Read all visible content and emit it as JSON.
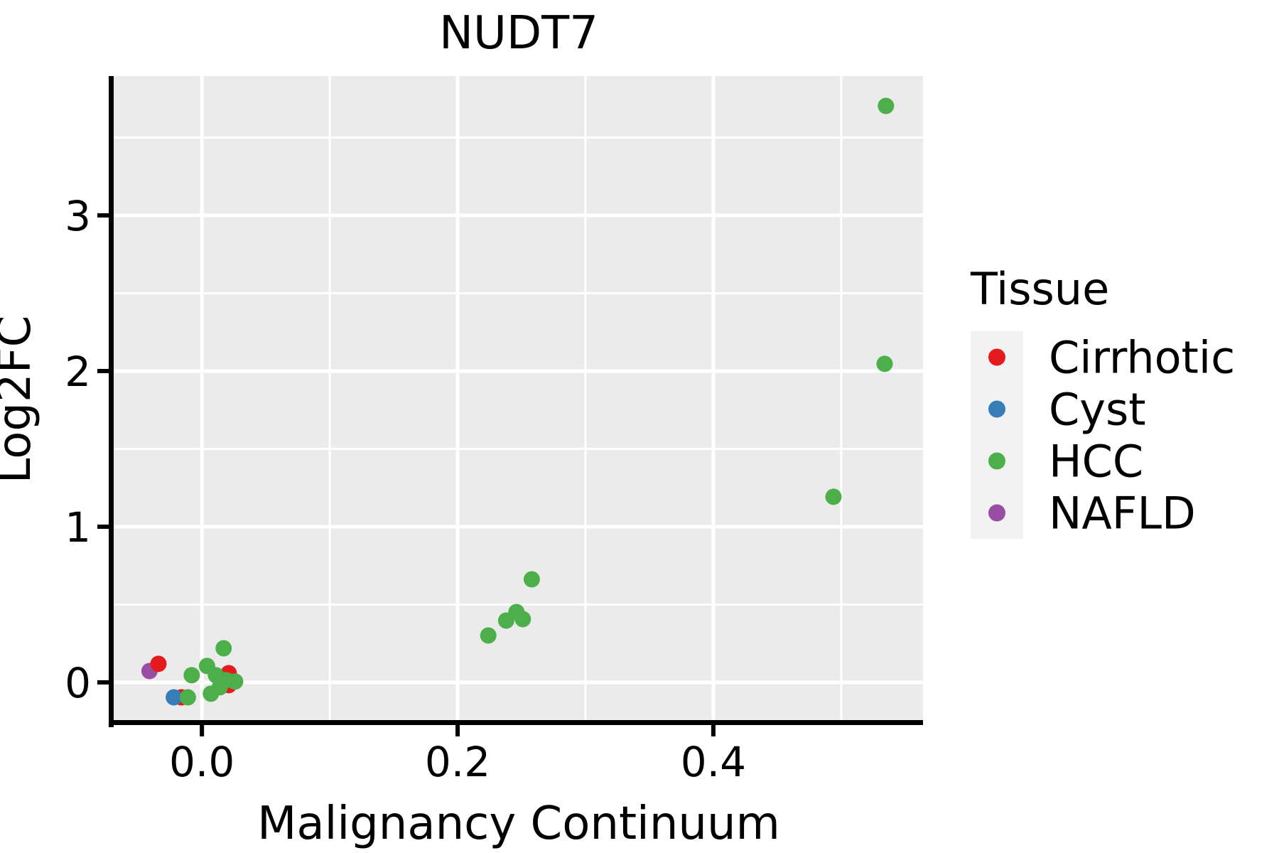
{
  "chart_data": {
    "type": "scatter",
    "title": "NUDT7",
    "xlabel": "Malignancy Continuum",
    "ylabel": "Log2FC",
    "legend": {
      "title": "Tissue",
      "position": "right",
      "entries": [
        "Cirrhotic",
        "Cyst",
        "HCC",
        "NAFLD"
      ]
    },
    "colors": {
      "Cirrhotic": "#e41a1c",
      "Cyst": "#377eb8",
      "HCC": "#4daf4a",
      "NAFLD": "#984ea3",
      "panel_background": "#ebebeb",
      "legend_key_background": "#f2f2f2",
      "gridline": "#ffffff",
      "axis_line": "#000000"
    },
    "xlim": [
      -0.069,
      0.564
    ],
    "ylim": [
      -0.256,
      3.895
    ],
    "xticks": {
      "values": [
        0.0,
        0.2,
        0.4
      ],
      "labels": [
        "0.0",
        "0.2",
        "0.4"
      ]
    },
    "yticks": {
      "values": [
        0,
        1,
        2,
        3
      ],
      "labels": [
        "0",
        "1",
        "2",
        "3"
      ]
    },
    "minor_xticks": [
      0.1,
      0.3,
      0.5
    ],
    "minor_yticks": [
      0.5,
      1.5,
      2.5,
      3.5
    ],
    "grid": "on",
    "point_radius_px": 11.5,
    "draw_order": [
      "NAFLD",
      "Cirrhotic",
      "Cyst",
      "HCC"
    ],
    "series": [
      {
        "name": "Cirrhotic",
        "points": [
          [
            -0.034,
            0.119
          ],
          [
            0.021,
            0.059
          ],
          [
            0.021,
            -0.018
          ],
          [
            -0.016,
            -0.096
          ]
        ]
      },
      {
        "name": "Cyst",
        "points": [
          [
            -0.022,
            -0.096
          ]
        ]
      },
      {
        "name": "HCC",
        "points": [
          [
            -0.008,
            0.046
          ],
          [
            0.004,
            0.105
          ],
          [
            0.017,
            0.219
          ],
          [
            0.011,
            0.046
          ],
          [
            0.019,
            0.014
          ],
          [
            0.026,
            0.005
          ],
          [
            0.014,
            -0.032
          ],
          [
            0.007,
            -0.073
          ],
          [
            -0.011,
            -0.096
          ],
          [
            0.224,
            0.301
          ],
          [
            0.238,
            0.397
          ],
          [
            0.251,
            0.406
          ],
          [
            0.246,
            0.452
          ],
          [
            0.258,
            0.662
          ],
          [
            0.494,
            1.192
          ],
          [
            0.534,
            2.046
          ],
          [
            0.535,
            3.703
          ]
        ]
      },
      {
        "name": "NAFLD",
        "points": [
          [
            -0.041,
            0.073
          ]
        ]
      }
    ]
  }
}
